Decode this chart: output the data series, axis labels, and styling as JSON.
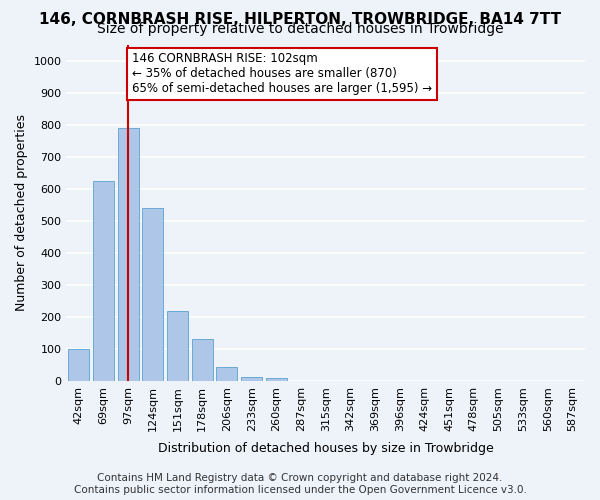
{
  "title": "146, CORNBRASH RISE, HILPERTON, TROWBRIDGE, BA14 7TT",
  "subtitle": "Size of property relative to detached houses in Trowbridge",
  "xlabel": "Distribution of detached houses by size in Trowbridge",
  "ylabel": "Number of detached properties",
  "bar_values": [
    100,
    625,
    790,
    540,
    220,
    130,
    42,
    13,
    10,
    0,
    0,
    0,
    0,
    0,
    0,
    0,
    0,
    0,
    0,
    0,
    0
  ],
  "categories": [
    "42sqm",
    "69sqm",
    "97sqm",
    "124sqm",
    "151sqm",
    "178sqm",
    "206sqm",
    "233sqm",
    "260sqm",
    "287sqm",
    "315sqm",
    "342sqm",
    "369sqm",
    "396sqm",
    "424sqm",
    "451sqm",
    "478sqm",
    "505sqm",
    "533sqm",
    "560sqm",
    "587sqm"
  ],
  "bar_color": "#aec6e8",
  "bar_edge_color": "#6aabd2",
  "vline_x": 2,
  "vline_color": "#cc0000",
  "annotation_text": "146 CORNBRASH RISE: 102sqm\n← 35% of detached houses are smaller (870)\n65% of semi-detached houses are larger (1,595) →",
  "annotation_box_color": "#ffffff",
  "annotation_border_color": "#cc0000",
  "ylim": [
    0,
    1050
  ],
  "yticks": [
    0,
    100,
    200,
    300,
    400,
    500,
    600,
    700,
    800,
    900,
    1000
  ],
  "background_color": "#eef2f9",
  "grid_color": "#ffffff",
  "footer_line1": "Contains HM Land Registry data © Crown copyright and database right 2024.",
  "footer_line2": "Contains public sector information licensed under the Open Government Licence v3.0.",
  "title_fontsize": 11,
  "subtitle_fontsize": 10,
  "axis_label_fontsize": 9,
  "tick_fontsize": 8,
  "annotation_fontsize": 8.5,
  "footer_fontsize": 7.5
}
